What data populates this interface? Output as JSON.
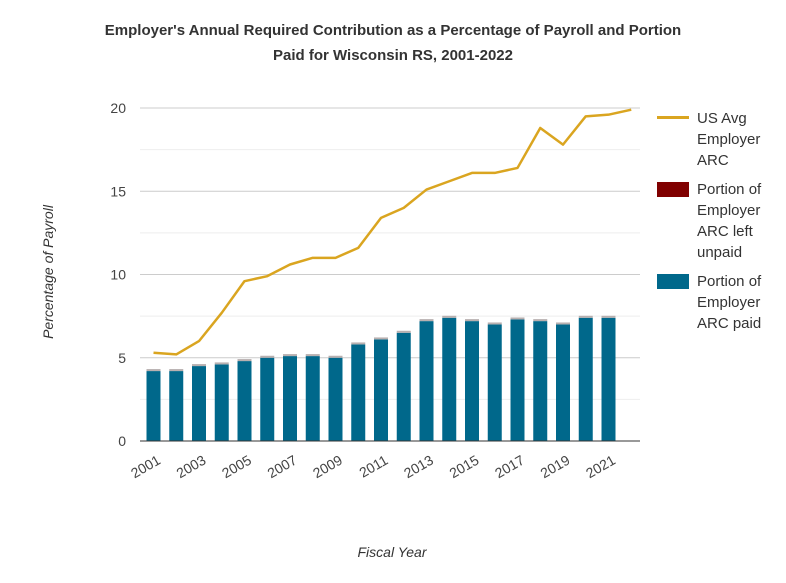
{
  "chart_data": {
    "type": "bar",
    "title": "Employer's Annual Required Contribution as a Percentage of Payroll and Portion Paid for Wisconsin RS, 2001-2022",
    "title_lines": [
      "Employer's Annual Required Contribution as a Percentage of Payroll and Portion",
      "Paid for Wisconsin RS, 2001-2022"
    ],
    "xlabel": "Fiscal Year",
    "ylabel": "Percentage of Payroll",
    "ylim": [
      0,
      20
    ],
    "yticks": [
      0,
      5,
      10,
      15,
      20
    ],
    "x": [
      2001,
      2002,
      2003,
      2004,
      2005,
      2006,
      2007,
      2008,
      2009,
      2010,
      2011,
      2012,
      2013,
      2014,
      2015,
      2016,
      2017,
      2018,
      2019,
      2020,
      2021,
      2022
    ],
    "xtick_labels": [
      "2001",
      "2003",
      "2005",
      "2007",
      "2009",
      "2011",
      "2013",
      "2015",
      "2017",
      "2019",
      "2021"
    ],
    "grid": true,
    "legend_position": "right",
    "series": [
      {
        "name": "US Avg Employer ARC",
        "type": "line",
        "color": "#DAA520",
        "values": [
          5.3,
          5.2,
          6.0,
          7.7,
          9.6,
          9.9,
          10.6,
          11.0,
          11.0,
          11.6,
          13.4,
          14.0,
          15.1,
          15.6,
          16.1,
          16.1,
          16.4,
          18.8,
          17.8,
          19.5,
          19.6,
          19.9
        ]
      },
      {
        "name": "Portion of Employer ARC left unpaid",
        "type": "bar",
        "stack": "arc",
        "color": "#800000",
        "values": [
          0.0,
          0.0,
          0.0,
          0.0,
          0.0,
          0.0,
          0.0,
          0.0,
          0.0,
          0.0,
          0.0,
          0.0,
          0.0,
          0.0,
          0.0,
          0.0,
          0.0,
          0.0,
          0.0,
          0.0,
          0.0,
          null
        ]
      },
      {
        "name": "Portion of Employer ARC paid",
        "type": "bar",
        "stack": "arc",
        "color": "#00688B",
        "values": [
          4.2,
          4.2,
          4.5,
          4.6,
          4.8,
          5.0,
          5.1,
          5.1,
          5.0,
          5.8,
          6.1,
          6.5,
          7.2,
          7.4,
          7.2,
          7.0,
          7.3,
          7.2,
          7.0,
          7.4,
          7.4,
          null
        ]
      }
    ]
  },
  "legend": {
    "items": [
      {
        "lines": [
          "US Avg",
          "Employer",
          "ARC"
        ],
        "color": "#DAA520",
        "kind": "line"
      },
      {
        "lines": [
          "Portion of",
          "Employer",
          "ARC left",
          "unpaid"
        ],
        "color": "#800000",
        "kind": "box"
      },
      {
        "lines": [
          "Portion of",
          "Employer",
          "ARC paid"
        ],
        "color": "#00688B",
        "kind": "box"
      }
    ]
  }
}
